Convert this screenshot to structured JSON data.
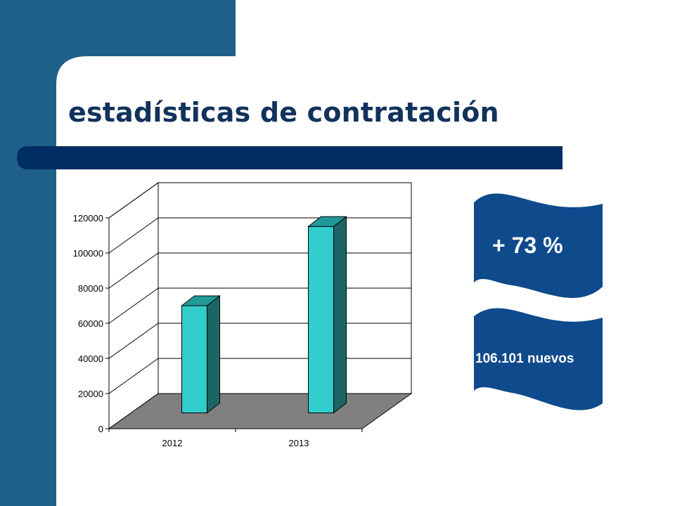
{
  "slide": {
    "title": "estadísticas de contratación",
    "colors": {
      "sidebar": "#1f6089",
      "title": "#12325c",
      "bar_front": "#33cccc",
      "bar_side": "#1d6565",
      "floor": "#808080",
      "badge": "#0e4a8c"
    }
  },
  "badges": [
    {
      "text": "+ 73 %"
    },
    {
      "text": "106.101 nuevos"
    }
  ],
  "chart_data": {
    "type": "bar",
    "style": "3d-column",
    "categories": [
      "2012",
      "2013"
    ],
    "values": [
      61000,
      106101
    ],
    "ylim": [
      0,
      120000
    ],
    "yticks": [
      0,
      20000,
      40000,
      60000,
      80000,
      100000,
      120000
    ],
    "grid": true,
    "legend": "none",
    "title": "",
    "xlabel": "",
    "ylabel": ""
  }
}
